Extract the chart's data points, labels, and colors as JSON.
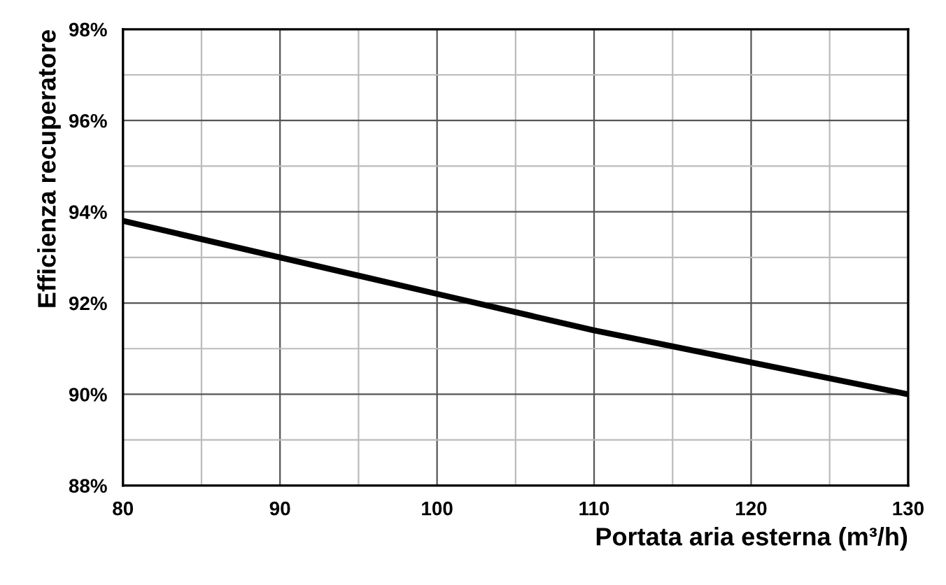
{
  "chart_data": {
    "type": "line",
    "xlabel": "Portata aria esterna (m³/h)",
    "ylabel": "Efficienza recuperatore",
    "x": [
      80,
      90,
      100,
      110,
      120,
      130
    ],
    "series": [
      {
        "color": "#000000",
        "values": [
          93.8,
          93.0,
          92.2,
          91.4,
          90.7,
          90.0
        ]
      }
    ],
    "xlim": [
      80,
      130
    ],
    "ylim": [
      88,
      98
    ],
    "xticks": [
      80,
      {
        "value": 85,
        "label": null
      },
      90,
      {
        "value": 95,
        "label": null
      },
      100,
      {
        "value": 105,
        "label": null
      },
      110,
      {
        "value": 115,
        "label": null
      },
      120,
      {
        "value": 125,
        "label": null
      },
      130
    ],
    "yticks": [
      {
        "value": 88,
        "label": "88%"
      },
      {
        "value": 89,
        "label": null
      },
      {
        "value": 90,
        "label": "90%"
      },
      {
        "value": 91,
        "label": null
      },
      {
        "value": 92,
        "label": "92%"
      },
      {
        "value": 93,
        "label": null
      },
      {
        "value": 94,
        "label": "94%"
      },
      {
        "value": 95,
        "label": null
      },
      {
        "value": 96,
        "label": "96%"
      },
      {
        "value": 97,
        "label": null
      },
      {
        "value": 98,
        "label": "98%"
      }
    ],
    "grid": true,
    "marker": "none",
    "line_style": "solid"
  }
}
